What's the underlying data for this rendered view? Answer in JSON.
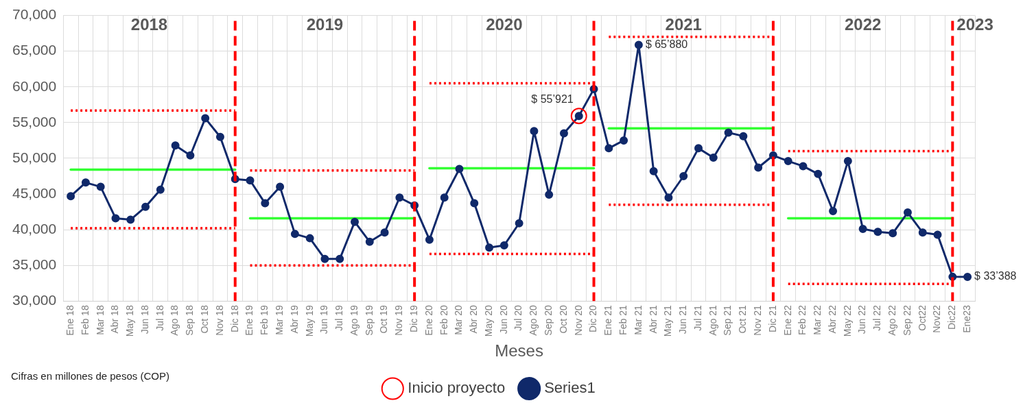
{
  "chart_data": {
    "type": "line",
    "xlabel": "Meses",
    "categories": [
      "Ene 18",
      "Feb 18",
      "Mar 18",
      "Abr 18",
      "May 18",
      "Jun 18",
      "Jul 18",
      "Ago 18",
      "Sep 18",
      "Oct 18",
      "Nov 18",
      "Dic 18",
      "Ene 19",
      "Feb 19",
      "Mar 19",
      "Abr 19",
      "May 19",
      "Jun 19",
      "Jul 19",
      "Ago 19",
      "Sep 19",
      "Oct 19",
      "Nov 19",
      "Dic 19",
      "Ene 20",
      "Feb 20",
      "Mar 20",
      "Abr 20",
      "May 20",
      "Jun 20",
      "Jul 20",
      "Ago 20",
      "Sep 20",
      "Oct 20",
      "Nov 20",
      "Dic 20",
      "Ene 21",
      "Feb 21",
      "Mar 21",
      "Abr 21",
      "May 21",
      "Jun 21",
      "Jul 21",
      "Ago 21",
      "Sep 21",
      "Oct 21",
      "Nov 21",
      "Dic 21",
      "Ene 22",
      "Feb 22",
      "Mar 22",
      "Abr 22",
      "May 22",
      "Jun 22",
      "Jul 22",
      "Ago 22",
      "Sep 22",
      "Oct22",
      "Nov22",
      "Dic22",
      "Ene23"
    ],
    "series": [
      {
        "name": "Series1",
        "color": "#10296a",
        "marker": "circle",
        "values": [
          44700,
          46600,
          46000,
          41600,
          41400,
          43200,
          45600,
          51800,
          50400,
          55600,
          53000,
          47100,
          46900,
          43700,
          46000,
          39400,
          38800,
          35900,
          35900,
          41100,
          38300,
          39600,
          44500,
          43400,
          38600,
          44500,
          48500,
          43700,
          37500,
          37800,
          40900,
          53800,
          44900,
          53500,
          55921,
          59700,
          51400,
          52500,
          65880,
          48200,
          44500,
          47500,
          51400,
          50100,
          53600,
          53100,
          48700,
          50400,
          49600,
          48900,
          47800,
          42600,
          49600,
          40100,
          39700,
          39500,
          42400,
          39600,
          39300,
          33400,
          33388
        ]
      },
      {
        "name": "Inicio proyecto",
        "type": "scatter",
        "color": "#ff0000",
        "marker": "circle",
        "x": [
          "Nov 20"
        ],
        "values": [
          55921
        ]
      },
      {
        "color": "#ff0000",
        "line_style": "dotted",
        "x": [
          "Ene 18",
          "Dic 18"
        ],
        "values": [
          56700,
          56700
        ]
      },
      {
        "color": "#33ff33",
        "line_style": "solid",
        "x": [
          "Ene 18",
          "Dic 18"
        ],
        "values": [
          48400,
          48400
        ]
      },
      {
        "color": "#ff0000",
        "line_style": "dotted",
        "x": [
          "Ene 18",
          "Dic 18"
        ],
        "values": [
          40200,
          40200
        ]
      },
      {
        "color": "#ff0000",
        "line_style": "dotted",
        "x": [
          "Ene 19",
          "Dic 19"
        ],
        "values": [
          48300,
          48300
        ]
      },
      {
        "color": "#33ff33",
        "line_style": "solid",
        "x": [
          "Ene 19",
          "Dic 19"
        ],
        "values": [
          41600,
          41600
        ]
      },
      {
        "color": "#ff0000",
        "line_style": "dotted",
        "x": [
          "Ene 19",
          "Dic 19"
        ],
        "values": [
          35000,
          35000
        ]
      },
      {
        "color": "#ff0000",
        "line_style": "dotted",
        "x": [
          "Ene 20",
          "Dic 20"
        ],
        "values": [
          60500,
          60500
        ]
      },
      {
        "color": "#33ff33",
        "line_style": "solid",
        "x": [
          "Ene 20",
          "Dic 20"
        ],
        "values": [
          48600,
          48600
        ]
      },
      {
        "color": "#ff0000",
        "line_style": "dotted",
        "x": [
          "Ene 20",
          "Dic 20"
        ],
        "values": [
          36600,
          36600
        ]
      },
      {
        "color": "#ff0000",
        "line_style": "dotted",
        "x": [
          "Ene 21",
          "Dic 21"
        ],
        "values": [
          67000,
          67000
        ]
      },
      {
        "color": "#33ff33",
        "line_style": "solid",
        "x": [
          "Ene 21",
          "Dic 21"
        ],
        "values": [
          54200,
          54200
        ]
      },
      {
        "color": "#ff0000",
        "line_style": "dotted",
        "x": [
          "Ene 21",
          "Dic 21"
        ],
        "values": [
          43500,
          43500
        ]
      },
      {
        "color": "#ff0000",
        "line_style": "dotted",
        "x": [
          "Ene 22",
          "Dic22"
        ],
        "values": [
          51000,
          51000
        ]
      },
      {
        "color": "#33ff33",
        "line_style": "solid",
        "x": [
          "Ene 22",
          "Dic22"
        ],
        "values": [
          41600,
          41600
        ]
      },
      {
        "color": "#ff0000",
        "line_style": "dotted",
        "x": [
          "Ene 22",
          "Dic22"
        ],
        "values": [
          32400,
          32400
        ]
      }
    ],
    "ylim": [
      30000,
      70000
    ],
    "yticks": [
      {
        "value": 30000,
        "label": "30,000"
      },
      {
        "value": 35000,
        "label": "35,000"
      },
      {
        "value": 40000,
        "label": "40,000"
      },
      {
        "value": 45000,
        "label": "45,000"
      },
      {
        "value": 50000,
        "label": "50,000"
      },
      {
        "value": 55000,
        "label": "55,000"
      },
      {
        "value": 60000,
        "label": "60,000"
      },
      {
        "value": 65000,
        "label": "65,000"
      },
      {
        "value": 70000,
        "label": "70,000"
      }
    ],
    "ref_lines": [
      {
        "axis": "x",
        "value": "Dic 18",
        "color": "#ff0000",
        "line_style": "dashed"
      },
      {
        "axis": "x",
        "value": "Dic 19",
        "color": "#ff0000",
        "line_style": "dashed"
      },
      {
        "axis": "x",
        "value": "Dic 20",
        "color": "#ff0000",
        "line_style": "dashed"
      },
      {
        "axis": "x",
        "value": "Dic 21",
        "color": "#ff0000",
        "line_style": "dashed"
      },
      {
        "axis": "x",
        "value": "Dic22",
        "color": "#ff0000",
        "line_style": "dashed"
      }
    ],
    "annotations": [
      "2018",
      "2019",
      "2020",
      "2021",
      "2022",
      "2023",
      {
        "text": "$ 55’921",
        "x": "Nov 20",
        "y": 55921
      },
      {
        "text": "$ 65’880",
        "x": "Mar 21",
        "y": 65880
      },
      {
        "text": "$ 33’388",
        "x": "Ene23",
        "y": 33388
      },
      "Cifras en millones de pesos (COP)"
    ],
    "grid": true,
    "legend": "bottom"
  }
}
